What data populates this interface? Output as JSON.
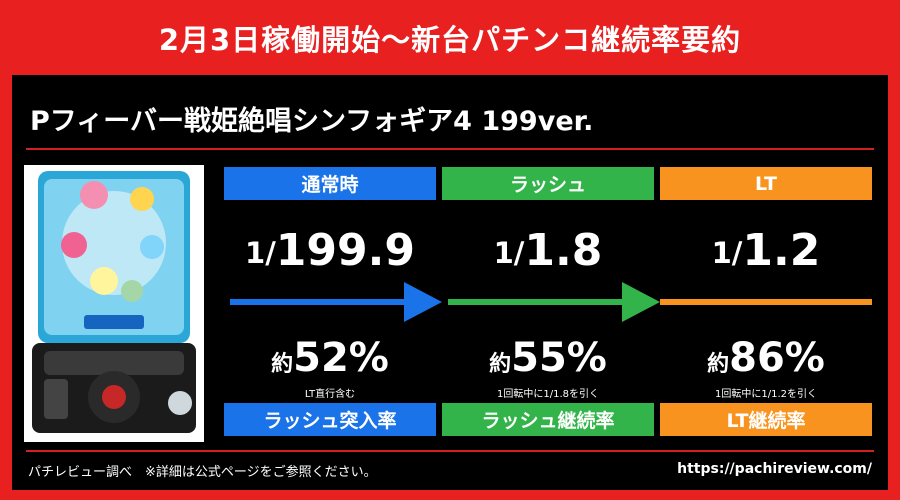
{
  "header": {
    "title": "2月3日稼働開始〜新台パチンコ継続率要約"
  },
  "machine": {
    "title": "Pフィーバー戦姫絶唱シンフォギア4 199ver."
  },
  "colors": {
    "red": "#e8201f",
    "blue": "#1a73e8",
    "green": "#33b44a",
    "orange": "#f7931e"
  },
  "columns": [
    {
      "head": "通常時",
      "odds_num": "1/",
      "odds_den": "199.9",
      "rate_prefix": "約",
      "rate_value": "52%",
      "note": "LT直行含む",
      "foot": "ラッシュ突入率",
      "color": "#1a73e8"
    },
    {
      "head": "ラッシュ",
      "odds_num": "1/",
      "odds_den": "1.8",
      "rate_prefix": "約",
      "rate_value": "55%",
      "note": "1回転中に1/1.8を引く",
      "foot": "ラッシュ継続率",
      "color": "#33b44a"
    },
    {
      "head": "LT",
      "odds_num": "1/",
      "odds_den": "1.2",
      "rate_prefix": "約",
      "rate_value": "86%",
      "note": "1回転中に1/1.2を引く",
      "foot": "LT継続率",
      "color": "#f7931e"
    }
  ],
  "footer": {
    "source": "パチレビュー調べ　※詳細は公式ページをご参照ください。",
    "url": "https://pachireview.com/"
  }
}
